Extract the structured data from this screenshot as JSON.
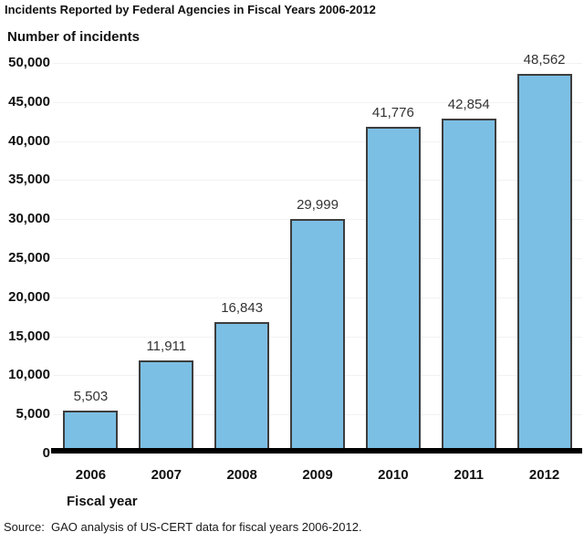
{
  "title": "Incidents Reported by Federal Agencies in Fiscal Years 2006-2012",
  "source": "Source:  GAO analysis of US-CERT data for fiscal years 2006-2012.",
  "chart_data": {
    "type": "bar",
    "title": "Incidents Reported by Federal Agencies in Fiscal Years 2006-2012",
    "y_axis_title": "Number of incidents",
    "xlabel": "Fiscal year",
    "categories": [
      "2006",
      "2007",
      "2008",
      "2009",
      "2010",
      "2011",
      "2012"
    ],
    "values": [
      5503,
      11911,
      16843,
      29999,
      41776,
      42854,
      48562
    ],
    "value_labels": [
      "5,503",
      "11,911",
      "16,843",
      "29,999",
      "41,776",
      "42,854",
      "48,562"
    ],
    "y_ticks": [
      "50,000",
      "45,000",
      "40,000",
      "35,000",
      "30,000",
      "25,000",
      "20,000",
      "15,000",
      "10,000",
      "5,000",
      "0"
    ],
    "ylim": [
      0,
      50000
    ],
    "grid": "very faint horizontal gridlines at each tick",
    "legend": "none",
    "bar_color": "#7cbfe4",
    "bar_border_color": "#3d3d3d",
    "baseline_color": "#000000"
  }
}
